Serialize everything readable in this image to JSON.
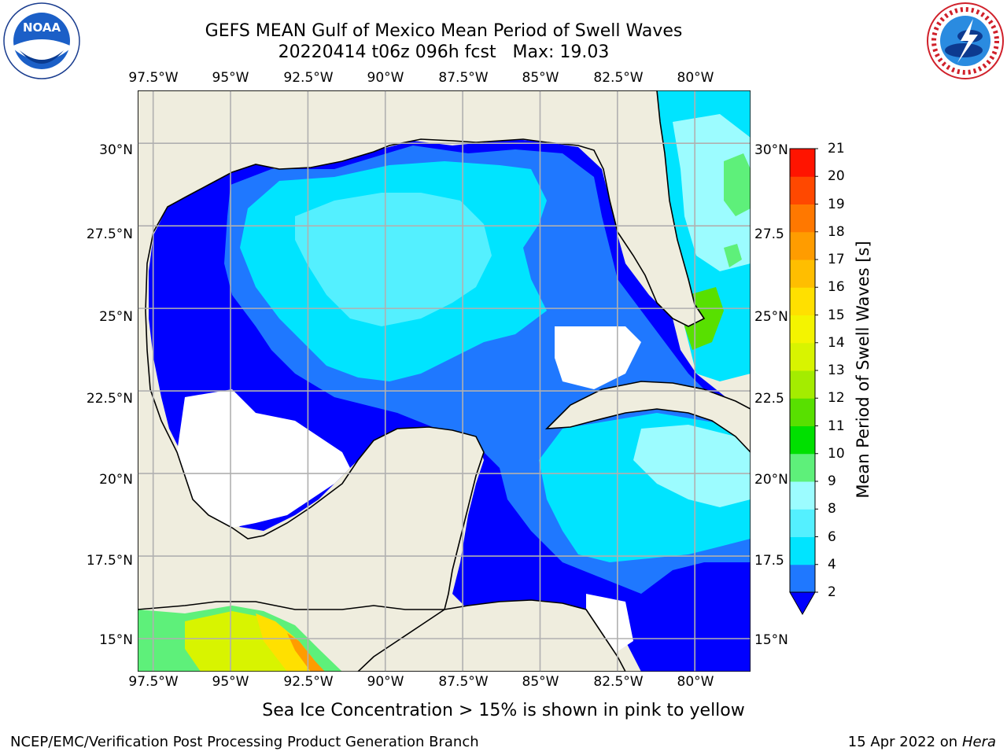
{
  "title": {
    "line1": "GEFS MEAN Gulf of Mexico Mean Period of Swell Waves",
    "line2": "20220414 t06z 096h fcst   Max: 19.03"
  },
  "logos": {
    "left": {
      "icon": "noaa-logo-icon",
      "text": "NOAA",
      "ring_text": "NATIONAL OCEANIC AND ATMOSPHERIC ADMINISTRATION · U.S. DEPARTMENT OF COMMERCE"
    },
    "right": {
      "icon": "nws-logo-icon",
      "ring_text": "NATIONAL WEATHER SERVICE"
    }
  },
  "map": {
    "lon_range": [
      -98,
      -78.2
    ],
    "lat_range": [
      14,
      31.6
    ],
    "colors": {
      "land": "#efedde",
      "coast": "#000000",
      "grid": "#b0b0b0",
      "no_data": "#ffffff"
    },
    "lon_ticks_top": [
      "97.5°W",
      "95°W",
      "92.5°W",
      "90°W",
      "87.5°W",
      "85°W",
      "82.5°W",
      "80°W"
    ],
    "lon_ticks_bottom": [
      "97.5°W",
      "95°W",
      "92.5°W",
      "90°W",
      "87.5°W",
      "85°W",
      "82.5°W",
      "80°W"
    ],
    "lat_ticks_left": [
      "30°N",
      "27.5°N",
      "25°N",
      "22.5°N",
      "20°N",
      "17.5°N",
      "15°N"
    ],
    "lat_ticks_right": [
      "30°N",
      "27.5",
      "25°N",
      "22.5",
      "20°N",
      "17.5",
      "15°N"
    ],
    "lon_values": [
      -97.5,
      -95,
      -92.5,
      -90,
      -87.5,
      -85,
      -82.5,
      -80
    ],
    "lat_values": [
      30,
      27.5,
      25,
      22.5,
      20,
      17.5,
      15
    ]
  },
  "colorbar": {
    "label": "Mean Period of Swell Waves [s]",
    "ticks": [
      "2",
      "4",
      "6",
      "8",
      "9",
      "10",
      "11",
      "12",
      "13",
      "14",
      "15",
      "16",
      "17",
      "18",
      "19",
      "20",
      "21"
    ],
    "colors": [
      "#1f78ff",
      "#00e4ff",
      "#54f0ff",
      "#9cfcff",
      "#5ef07a",
      "#00e000",
      "#58e000",
      "#a4ec00",
      "#d8f400",
      "#f4f400",
      "#ffe000",
      "#ffbe00",
      "#ff9c00",
      "#ff7800",
      "#ff4800",
      "#ff1400"
    ],
    "under_color": "#0000ff"
  },
  "caption": "Sea Ice Concentration > 15% is shown in pink to yellow",
  "footer": {
    "left": "NCEP/EMC/Verification Post Processing Product Generation Branch",
    "right_date": "15 Apr 2022 on",
    "right_host": "Hera"
  }
}
